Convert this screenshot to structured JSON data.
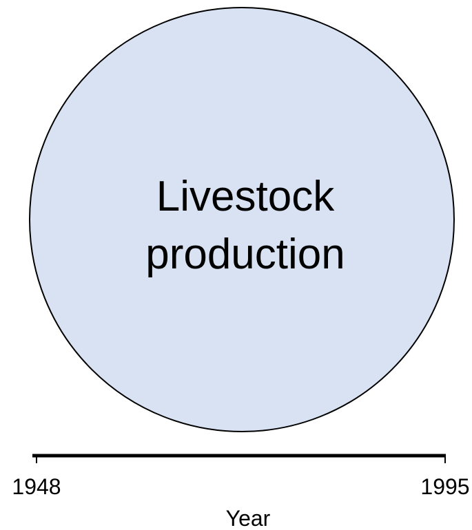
{
  "node": {
    "label": "Livestock production"
  },
  "axis": {
    "label": "Year",
    "start": "1948",
    "end": "1995"
  }
}
